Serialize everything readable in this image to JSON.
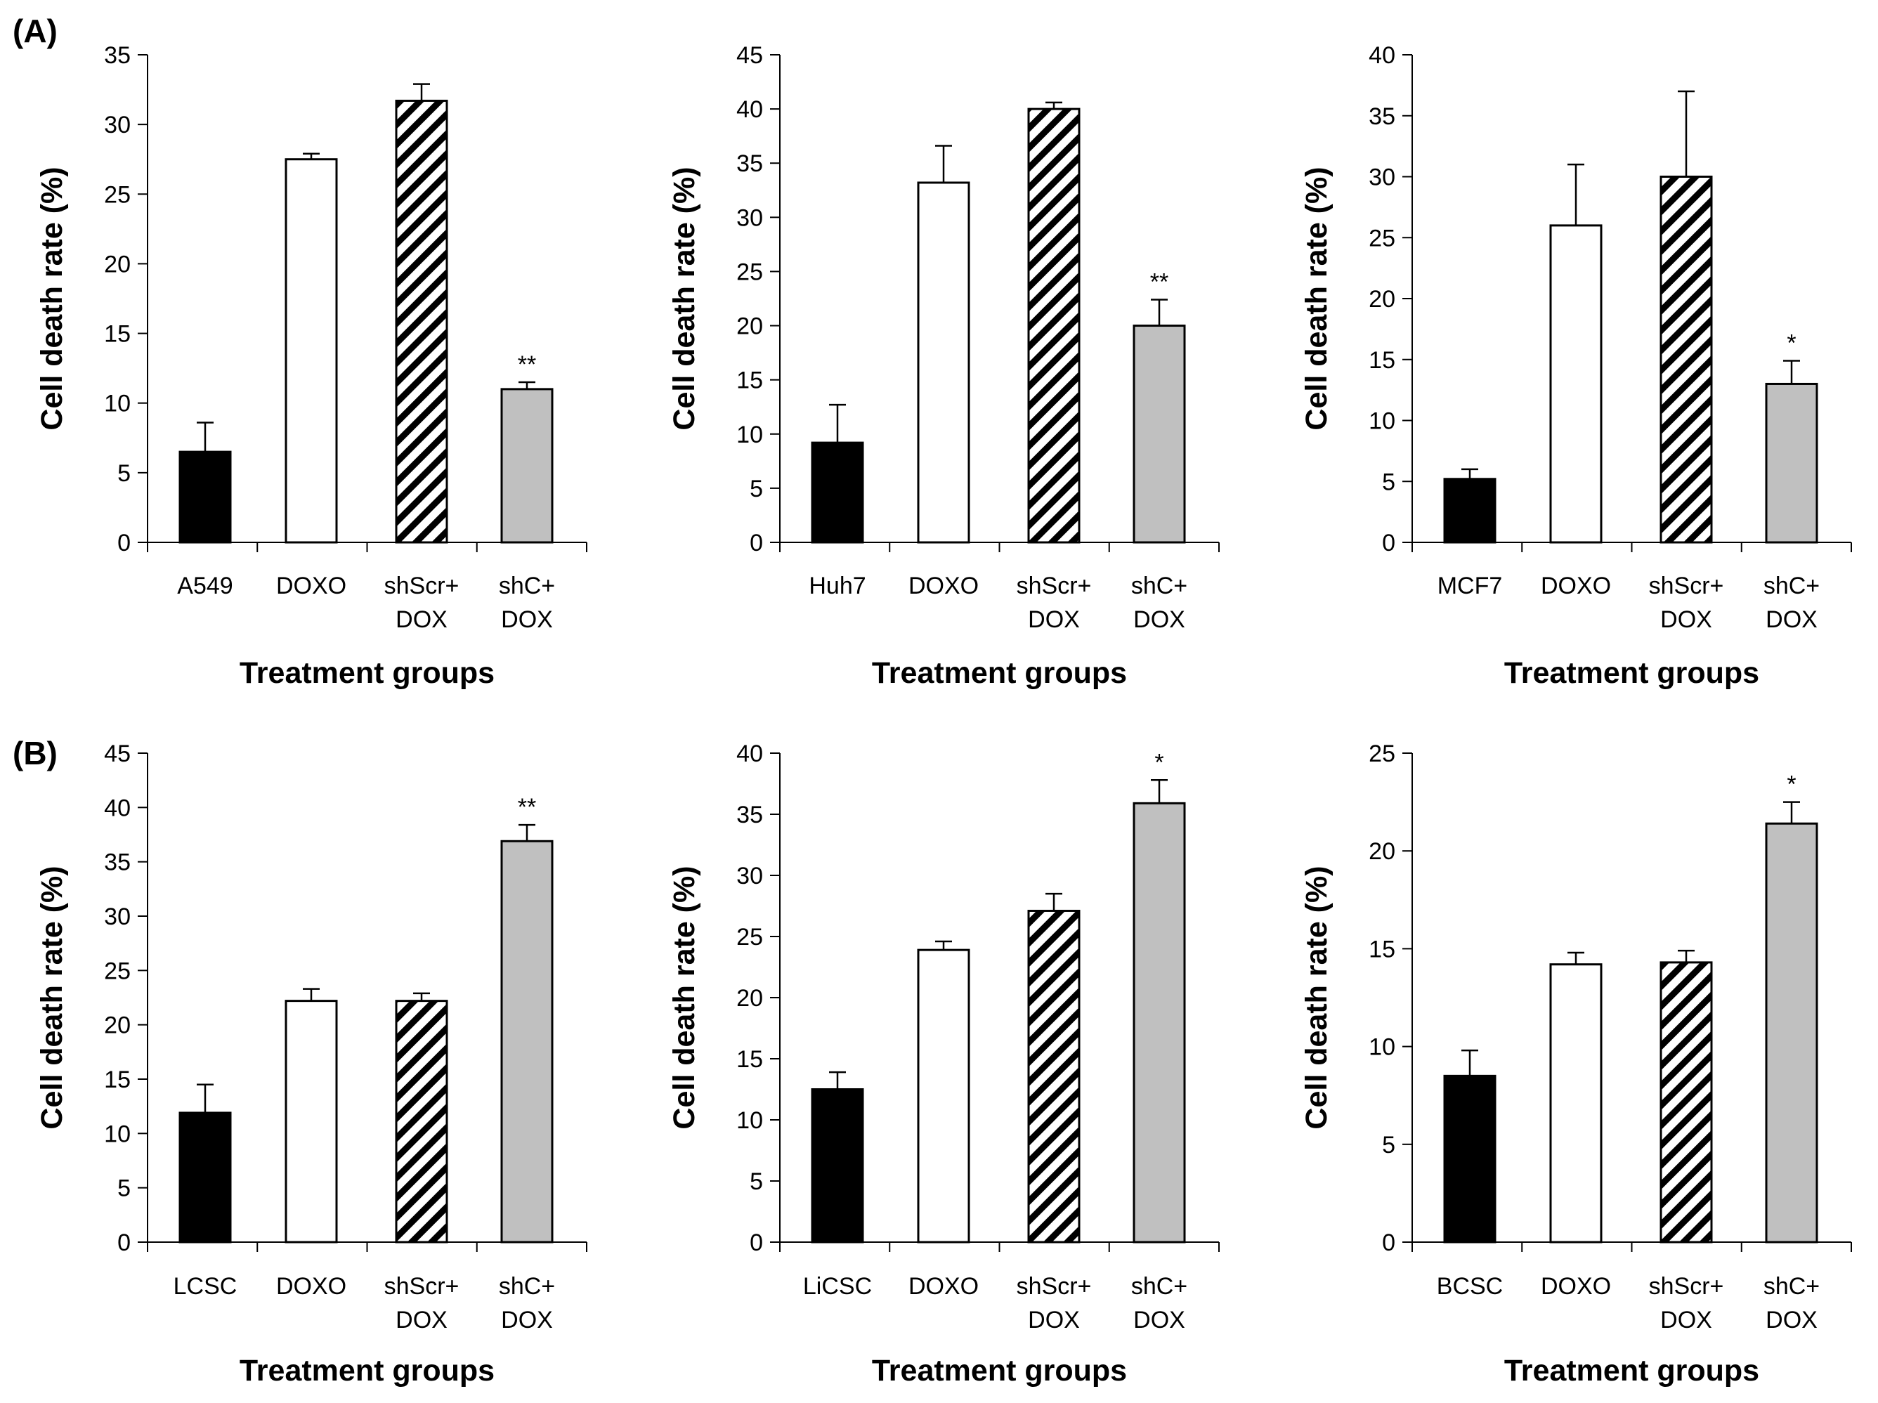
{
  "panel_labels": [
    "(A)",
    "(B)"
  ],
  "colors": {
    "control": "#000000",
    "doxo": "#ffffff",
    "shscr": "hatch",
    "shc": "#c0c0c0",
    "edge": "#000000"
  },
  "chart_data": [
    {
      "type": "bar",
      "panel": "(A)",
      "title": "",
      "xlabel": "Treatment groups",
      "ylabel": "Cell death rate (%)",
      "categories": [
        [
          "A549"
        ],
        [
          "DOXO"
        ],
        [
          "shScr+",
          "DOX"
        ],
        [
          "shC+",
          "DOX"
        ]
      ],
      "values": [
        6.5,
        27.5,
        31.7,
        11.0
      ],
      "errors": [
        2.1,
        0.4,
        1.2,
        0.5
      ],
      "significance": [
        "",
        "",
        "",
        "**"
      ],
      "ylim": [
        0,
        35
      ],
      "ystep": 5
    },
    {
      "type": "bar",
      "panel": "",
      "title": "",
      "xlabel": "Treatment groups",
      "ylabel": "Cell death rate (%)",
      "categories": [
        [
          "Huh7"
        ],
        [
          "DOXO"
        ],
        [
          "shScr+",
          "DOX"
        ],
        [
          "shC+",
          "DOX"
        ]
      ],
      "values": [
        9.2,
        33.2,
        40.0,
        20.0
      ],
      "errors": [
        3.5,
        3.4,
        0.6,
        2.4
      ],
      "significance": [
        "",
        "",
        "",
        "**"
      ],
      "ylim": [
        0,
        45
      ],
      "ystep": 5
    },
    {
      "type": "bar",
      "panel": "",
      "title": "",
      "xlabel": "Treatment groups",
      "ylabel": "Cell death rate (%)",
      "categories": [
        [
          "MCF7"
        ],
        [
          "DOXO"
        ],
        [
          "shScr+",
          "DOX"
        ],
        [
          "shC+",
          "DOX"
        ]
      ],
      "values": [
        5.2,
        26.0,
        30.0,
        13.0
      ],
      "errors": [
        0.8,
        5.0,
        7.0,
        1.9
      ],
      "significance": [
        "",
        "",
        "",
        "*"
      ],
      "ylim": [
        0,
        40
      ],
      "ystep": 5
    },
    {
      "type": "bar",
      "panel": "(B)",
      "title": "",
      "xlabel": "Treatment groups",
      "ylabel": "Cell death rate (%)",
      "categories": [
        [
          "LCSC"
        ],
        [
          "DOXO"
        ],
        [
          "shScr+",
          "DOX"
        ],
        [
          "shC+",
          "DOX"
        ]
      ],
      "values": [
        11.9,
        22.2,
        22.2,
        36.9
      ],
      "errors": [
        2.6,
        1.1,
        0.7,
        1.5
      ],
      "significance": [
        "",
        "",
        "",
        "**"
      ],
      "ylim": [
        0,
        45
      ],
      "ystep": 5
    },
    {
      "type": "bar",
      "panel": "",
      "title": "",
      "xlabel": "Treatment groups",
      "ylabel": "Cell death rate (%)",
      "categories": [
        [
          "LiCSC"
        ],
        [
          "DOXO"
        ],
        [
          "shScr+",
          "DOX"
        ],
        [
          "shC+",
          "DOX"
        ]
      ],
      "values": [
        12.5,
        23.9,
        27.1,
        35.9
      ],
      "errors": [
        1.4,
        0.7,
        1.4,
        1.9
      ],
      "significance": [
        "",
        "",
        "",
        "*"
      ],
      "ylim": [
        0,
        40
      ],
      "ystep": 5
    },
    {
      "type": "bar",
      "panel": "",
      "title": "",
      "xlabel": "Treatment groups",
      "ylabel": "Cell death rate (%)",
      "categories": [
        [
          "BCSC"
        ],
        [
          "DOXO"
        ],
        [
          "shScr+",
          "DOX"
        ],
        [
          "shC+",
          "DOX"
        ]
      ],
      "values": [
        8.5,
        14.2,
        14.3,
        21.4
      ],
      "errors": [
        1.3,
        0.6,
        0.6,
        1.1
      ],
      "significance": [
        "",
        "",
        "",
        "*"
      ],
      "ylim": [
        0,
        25
      ],
      "ystep": 5
    }
  ]
}
